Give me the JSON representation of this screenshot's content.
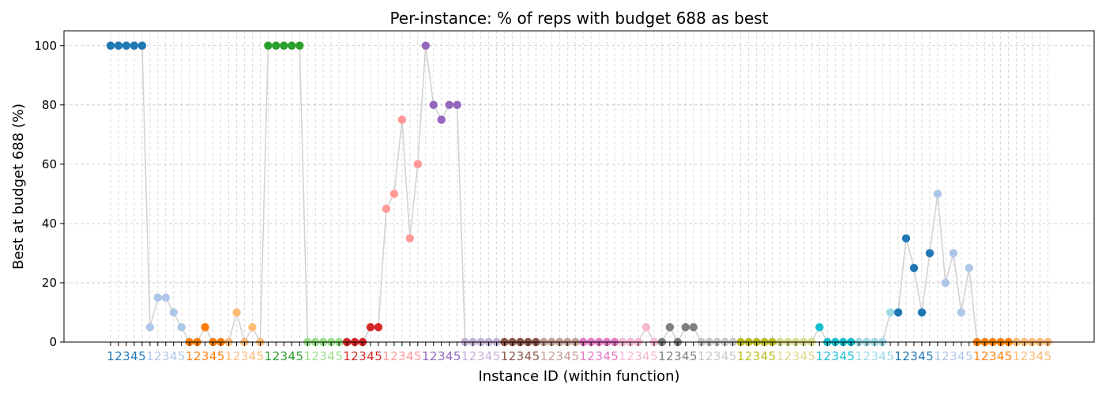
{
  "chart_data": {
    "type": "line",
    "title": "Per-instance: % of reps with budget 688 as best",
    "xlabel": "Instance ID (within function)",
    "ylabel": "Best at budget 688 (%)",
    "ylim": [
      0,
      105
    ],
    "yticks": [
      0,
      20,
      40,
      60,
      80,
      100
    ],
    "grid": true,
    "line_color": "#d3d3d3",
    "instances_per_function": 5,
    "function_colors": [
      "#1f77b4",
      "#aec7e8",
      "#ff7f0e",
      "#ffbb78",
      "#2ca02c",
      "#98df8a",
      "#d62728",
      "#ff9896",
      "#9467bd",
      "#c5b0d5",
      "#8c564b",
      "#c49c94",
      "#e377c2",
      "#f7b6d2",
      "#7f7f7f",
      "#c7c7c7",
      "#bcbd22",
      "#dbdb8d",
      "#17becf",
      "#9edae5",
      "#1f77b4",
      "#aec7e8",
      "#ff7f0e",
      "#ffbb78"
    ],
    "x_tick_labels": [
      "1",
      "2",
      "3",
      "4",
      "5",
      "1",
      "2",
      "3",
      "4",
      "5",
      "1",
      "2",
      "3",
      "4",
      "5",
      "1",
      "2",
      "3",
      "4",
      "5",
      "1",
      "2",
      "3",
      "4",
      "5",
      "1",
      "2",
      "3",
      "4",
      "5",
      "1",
      "2",
      "3",
      "4",
      "5",
      "1",
      "2",
      "3",
      "4",
      "5",
      "1",
      "2",
      "3",
      "4",
      "5",
      "1",
      "2",
      "3",
      "4",
      "5",
      "1",
      "2",
      "3",
      "4",
      "5",
      "1",
      "2",
      "3",
      "4",
      "5",
      "1",
      "2",
      "3",
      "4",
      "5",
      "1",
      "2",
      "3",
      "4",
      "5",
      "1",
      "2",
      "3",
      "4",
      "5",
      "1",
      "2",
      "3",
      "4",
      "5",
      "1",
      "2",
      "3",
      "4",
      "5",
      "1",
      "2",
      "3",
      "4",
      "5",
      "1",
      "2",
      "3",
      "4",
      "5",
      "1",
      "2",
      "3",
      "4",
      "5",
      "1",
      "2",
      "3",
      "4",
      "5",
      "1",
      "2",
      "3",
      "4",
      "5",
      "1",
      "2",
      "3",
      "4",
      "5",
      "1",
      "2",
      "3",
      "4",
      "5"
    ],
    "values": [
      100,
      100,
      100,
      100,
      100,
      5,
      15,
      15,
      10,
      5,
      0,
      0,
      5,
      0,
      0,
      0,
      10,
      0,
      5,
      0,
      100,
      100,
      100,
      100,
      100,
      0,
      0,
      0,
      0,
      0,
      0,
      0,
      0,
      5,
      5,
      45,
      50,
      75,
      35,
      60,
      100,
      80,
      75,
      80,
      80,
      0,
      0,
      0,
      0,
      0,
      0,
      0,
      0,
      0,
      0,
      0,
      0,
      0,
      0,
      0,
      0,
      0,
      0,
      0,
      0,
      0,
      0,
      0,
      5,
      0,
      0,
      5,
      0,
      5,
      5,
      0,
      0,
      0,
      0,
      0,
      0,
      0,
      0,
      0,
      0,
      0,
      0,
      0,
      0,
      0,
      5,
      0,
      0,
      0,
      0,
      0,
      0,
      0,
      0,
      10,
      10,
      35,
      25,
      10,
      30,
      50,
      20,
      30,
      10,
      25,
      0,
      0,
      0,
      0,
      0,
      0,
      0,
      0,
      0,
      0
    ]
  }
}
